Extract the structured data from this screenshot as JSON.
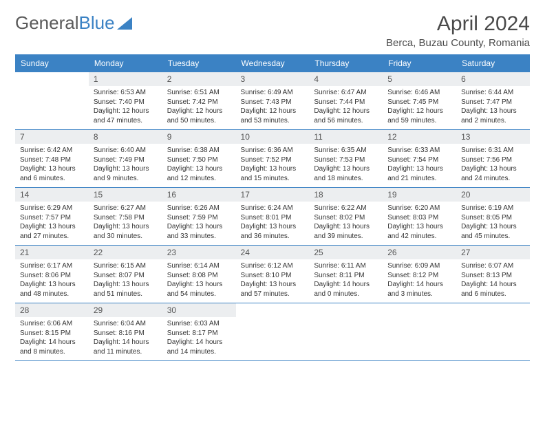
{
  "brand": {
    "part1": "General",
    "part2": "Blue"
  },
  "title": "April 2024",
  "location": "Berca, Buzau County, Romania",
  "colors": {
    "header_bg": "#3b82c4",
    "header_text": "#ffffff",
    "daynum_bg": "#eceef0",
    "border": "#3b82c4",
    "text": "#333333",
    "title_text": "#4a4a4a"
  },
  "day_headers": [
    "Sunday",
    "Monday",
    "Tuesday",
    "Wednesday",
    "Thursday",
    "Friday",
    "Saturday"
  ],
  "weeks": [
    [
      {
        "n": "",
        "sr": "",
        "ss": "",
        "dl": ""
      },
      {
        "n": "1",
        "sr": "Sunrise: 6:53 AM",
        "ss": "Sunset: 7:40 PM",
        "dl": "Daylight: 12 hours and 47 minutes."
      },
      {
        "n": "2",
        "sr": "Sunrise: 6:51 AM",
        "ss": "Sunset: 7:42 PM",
        "dl": "Daylight: 12 hours and 50 minutes."
      },
      {
        "n": "3",
        "sr": "Sunrise: 6:49 AM",
        "ss": "Sunset: 7:43 PM",
        "dl": "Daylight: 12 hours and 53 minutes."
      },
      {
        "n": "4",
        "sr": "Sunrise: 6:47 AM",
        "ss": "Sunset: 7:44 PM",
        "dl": "Daylight: 12 hours and 56 minutes."
      },
      {
        "n": "5",
        "sr": "Sunrise: 6:46 AM",
        "ss": "Sunset: 7:45 PM",
        "dl": "Daylight: 12 hours and 59 minutes."
      },
      {
        "n": "6",
        "sr": "Sunrise: 6:44 AM",
        "ss": "Sunset: 7:47 PM",
        "dl": "Daylight: 13 hours and 2 minutes."
      }
    ],
    [
      {
        "n": "7",
        "sr": "Sunrise: 6:42 AM",
        "ss": "Sunset: 7:48 PM",
        "dl": "Daylight: 13 hours and 6 minutes."
      },
      {
        "n": "8",
        "sr": "Sunrise: 6:40 AM",
        "ss": "Sunset: 7:49 PM",
        "dl": "Daylight: 13 hours and 9 minutes."
      },
      {
        "n": "9",
        "sr": "Sunrise: 6:38 AM",
        "ss": "Sunset: 7:50 PM",
        "dl": "Daylight: 13 hours and 12 minutes."
      },
      {
        "n": "10",
        "sr": "Sunrise: 6:36 AM",
        "ss": "Sunset: 7:52 PM",
        "dl": "Daylight: 13 hours and 15 minutes."
      },
      {
        "n": "11",
        "sr": "Sunrise: 6:35 AM",
        "ss": "Sunset: 7:53 PM",
        "dl": "Daylight: 13 hours and 18 minutes."
      },
      {
        "n": "12",
        "sr": "Sunrise: 6:33 AM",
        "ss": "Sunset: 7:54 PM",
        "dl": "Daylight: 13 hours and 21 minutes."
      },
      {
        "n": "13",
        "sr": "Sunrise: 6:31 AM",
        "ss": "Sunset: 7:56 PM",
        "dl": "Daylight: 13 hours and 24 minutes."
      }
    ],
    [
      {
        "n": "14",
        "sr": "Sunrise: 6:29 AM",
        "ss": "Sunset: 7:57 PM",
        "dl": "Daylight: 13 hours and 27 minutes."
      },
      {
        "n": "15",
        "sr": "Sunrise: 6:27 AM",
        "ss": "Sunset: 7:58 PM",
        "dl": "Daylight: 13 hours and 30 minutes."
      },
      {
        "n": "16",
        "sr": "Sunrise: 6:26 AM",
        "ss": "Sunset: 7:59 PM",
        "dl": "Daylight: 13 hours and 33 minutes."
      },
      {
        "n": "17",
        "sr": "Sunrise: 6:24 AM",
        "ss": "Sunset: 8:01 PM",
        "dl": "Daylight: 13 hours and 36 minutes."
      },
      {
        "n": "18",
        "sr": "Sunrise: 6:22 AM",
        "ss": "Sunset: 8:02 PM",
        "dl": "Daylight: 13 hours and 39 minutes."
      },
      {
        "n": "19",
        "sr": "Sunrise: 6:20 AM",
        "ss": "Sunset: 8:03 PM",
        "dl": "Daylight: 13 hours and 42 minutes."
      },
      {
        "n": "20",
        "sr": "Sunrise: 6:19 AM",
        "ss": "Sunset: 8:05 PM",
        "dl": "Daylight: 13 hours and 45 minutes."
      }
    ],
    [
      {
        "n": "21",
        "sr": "Sunrise: 6:17 AM",
        "ss": "Sunset: 8:06 PM",
        "dl": "Daylight: 13 hours and 48 minutes."
      },
      {
        "n": "22",
        "sr": "Sunrise: 6:15 AM",
        "ss": "Sunset: 8:07 PM",
        "dl": "Daylight: 13 hours and 51 minutes."
      },
      {
        "n": "23",
        "sr": "Sunrise: 6:14 AM",
        "ss": "Sunset: 8:08 PM",
        "dl": "Daylight: 13 hours and 54 minutes."
      },
      {
        "n": "24",
        "sr": "Sunrise: 6:12 AM",
        "ss": "Sunset: 8:10 PM",
        "dl": "Daylight: 13 hours and 57 minutes."
      },
      {
        "n": "25",
        "sr": "Sunrise: 6:11 AM",
        "ss": "Sunset: 8:11 PM",
        "dl": "Daylight: 14 hours and 0 minutes."
      },
      {
        "n": "26",
        "sr": "Sunrise: 6:09 AM",
        "ss": "Sunset: 8:12 PM",
        "dl": "Daylight: 14 hours and 3 minutes."
      },
      {
        "n": "27",
        "sr": "Sunrise: 6:07 AM",
        "ss": "Sunset: 8:13 PM",
        "dl": "Daylight: 14 hours and 6 minutes."
      }
    ],
    [
      {
        "n": "28",
        "sr": "Sunrise: 6:06 AM",
        "ss": "Sunset: 8:15 PM",
        "dl": "Daylight: 14 hours and 8 minutes."
      },
      {
        "n": "29",
        "sr": "Sunrise: 6:04 AM",
        "ss": "Sunset: 8:16 PM",
        "dl": "Daylight: 14 hours and 11 minutes."
      },
      {
        "n": "30",
        "sr": "Sunrise: 6:03 AM",
        "ss": "Sunset: 8:17 PM",
        "dl": "Daylight: 14 hours and 14 minutes."
      },
      {
        "n": "",
        "sr": "",
        "ss": "",
        "dl": ""
      },
      {
        "n": "",
        "sr": "",
        "ss": "",
        "dl": ""
      },
      {
        "n": "",
        "sr": "",
        "ss": "",
        "dl": ""
      },
      {
        "n": "",
        "sr": "",
        "ss": "",
        "dl": ""
      }
    ]
  ]
}
